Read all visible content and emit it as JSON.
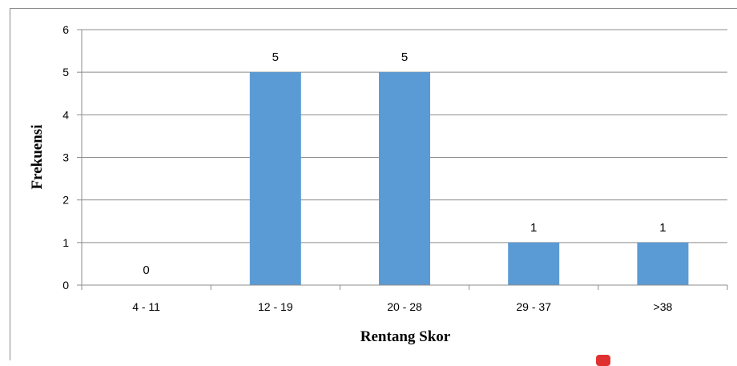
{
  "chart_data": {
    "type": "bar",
    "categories": [
      "4 - 11",
      "12 - 19",
      "20 - 28",
      "29 - 37",
      ">38"
    ],
    "values": [
      0,
      5,
      5,
      1,
      1
    ],
    "data_labels": [
      "0",
      "5",
      "5",
      "1",
      "1"
    ],
    "title": "",
    "xlabel": "Rentang Skor",
    "ylabel": "Frekuensi",
    "ylim": [
      0,
      6
    ],
    "yticks": [
      "0",
      "1",
      "2",
      "3",
      "4",
      "5",
      "6"
    ],
    "grid": true,
    "legend": "none",
    "colors": {
      "bar": "#5b9bd5",
      "grid": "#8c8c8c",
      "axis": "#8c8c8c"
    }
  }
}
